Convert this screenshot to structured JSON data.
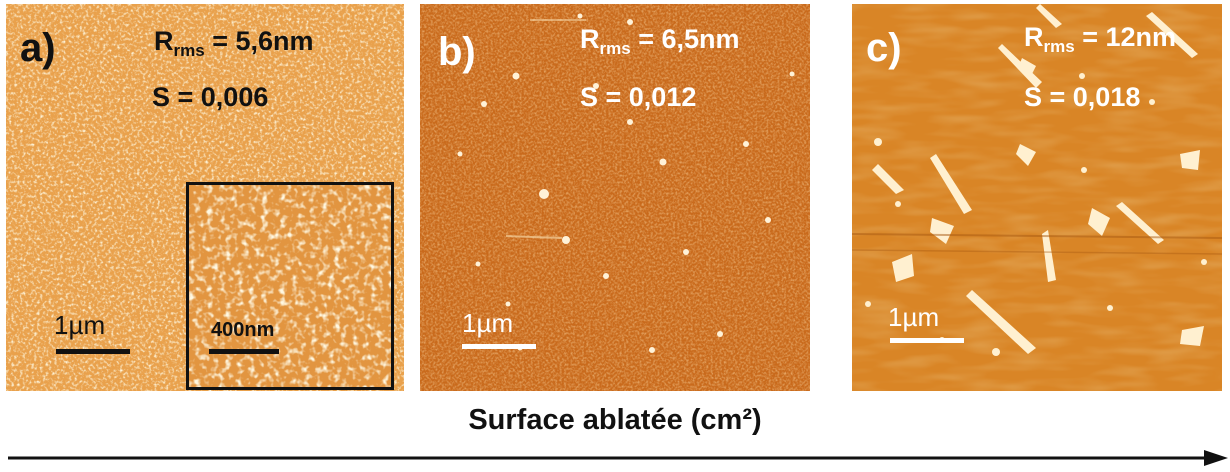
{
  "colors": {
    "panel_a_base": "#e9a14c",
    "panel_b_base": "#c96a1c",
    "panel_c_base": "#d98526",
    "text_dark": "#111111",
    "text_light": "#ffffff"
  },
  "panels": [
    {
      "letter": "a)",
      "rms_symbol": "R",
      "rms_sub": "rms",
      "rms_value": " = 5,6nm",
      "s_label": "S = 0,006",
      "scale_label": "1µm",
      "inset_label": "400nm"
    },
    {
      "letter": "b)",
      "rms_symbol": "R",
      "rms_sub": "rms",
      "rms_value": " = 6,5nm",
      "s_label": "S = 0,012",
      "scale_label": "1µm"
    },
    {
      "letter": "c)",
      "rms_symbol": "R",
      "rms_sub": "rms",
      "rms_value": " = 12nm",
      "s_label": "S = 0,018",
      "scale_label": "1µm"
    }
  ],
  "axis": {
    "title": "Surface ablatée (cm²)"
  }
}
